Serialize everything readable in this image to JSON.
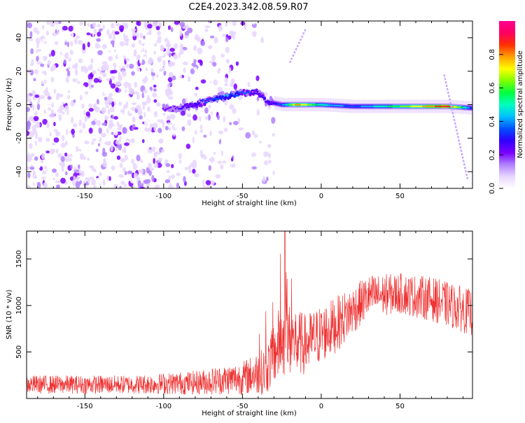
{
  "title": "C2E4.2023.342.08.59.R07",
  "chart_data": [
    {
      "type": "heatmap",
      "xlabel": "Height of straight line (km)",
      "ylabel": "Frequency (Hz)",
      "xlim": [
        -187,
        96
      ],
      "ylim": [
        -50,
        50
      ],
      "x_ticks": [
        -150,
        -100,
        -50,
        0,
        50
      ],
      "y_ticks": [
        -40,
        -20,
        0,
        20,
        40
      ],
      "colorbar": {
        "label": "Normalized spectral amplitude",
        "range": [
          0,
          1
        ],
        "ticks": [
          0.0,
          0.2,
          0.4,
          0.6,
          0.8
        ],
        "colors": [
          "#ffffff",
          "#e8d6ff",
          "#b080ff",
          "#7a00ff",
          "#3000ff",
          "#0050ff",
          "#00c0ff",
          "#00ffc0",
          "#00ff40",
          "#80ff00",
          "#ffff00",
          "#ffa000",
          "#ff3000",
          "#ff0060",
          "#ff0090"
        ]
      },
      "trace": [
        {
          "x": -100,
          "y": -2,
          "amp": 0.2
        },
        {
          "x": -90,
          "y": -2,
          "amp": 0.25
        },
        {
          "x": -80,
          "y": 0,
          "amp": 0.3
        },
        {
          "x": -70,
          "y": 3,
          "amp": 0.35
        },
        {
          "x": -60,
          "y": 5,
          "amp": 0.4
        },
        {
          "x": -50,
          "y": 7,
          "amp": 0.35
        },
        {
          "x": -40,
          "y": 8,
          "amp": 0.3
        },
        {
          "x": -35,
          "y": 2,
          "amp": 0.25
        },
        {
          "x": -25,
          "y": 0,
          "amp": 0.35
        },
        {
          "x": -15,
          "y": 0,
          "amp": 0.8
        },
        {
          "x": 0,
          "y": 0,
          "amp": 0.5
        },
        {
          "x": 20,
          "y": -1,
          "amp": 0.35
        },
        {
          "x": 50,
          "y": -1,
          "amp": 0.6
        },
        {
          "x": 80,
          "y": -1,
          "amp": 0.9
        },
        {
          "x": 96,
          "y": -2,
          "amp": 0.35
        }
      ]
    },
    {
      "type": "line",
      "xlabel": "Height of straight line (km)",
      "ylabel": "SNR (10 * v/v)",
      "xlim": [
        -187,
        96
      ],
      "ylim": [
        0,
        1800
      ],
      "x_ticks": [
        -150,
        -100,
        -50,
        0,
        50
      ],
      "y_ticks": [
        500,
        1000,
        1500
      ],
      "series": [
        {
          "color": "#ee3333",
          "envelope": [
            {
              "x": -187,
              "center": 150,
              "spread": 100
            },
            {
              "x": -120,
              "center": 150,
              "spread": 100
            },
            {
              "x": -80,
              "center": 170,
              "spread": 130
            },
            {
              "x": -50,
              "center": 220,
              "spread": 180
            },
            {
              "x": -35,
              "center": 300,
              "spread": 260
            },
            {
              "x": -25,
              "center": 650,
              "spread": 420
            },
            {
              "x": -10,
              "center": 580,
              "spread": 330
            },
            {
              "x": 10,
              "center": 800,
              "spread": 300
            },
            {
              "x": 30,
              "center": 1100,
              "spread": 230
            },
            {
              "x": 50,
              "center": 1130,
              "spread": 220
            },
            {
              "x": 70,
              "center": 1070,
              "spread": 240
            },
            {
              "x": 96,
              "center": 920,
              "spread": 250
            }
          ]
        }
      ]
    }
  ]
}
